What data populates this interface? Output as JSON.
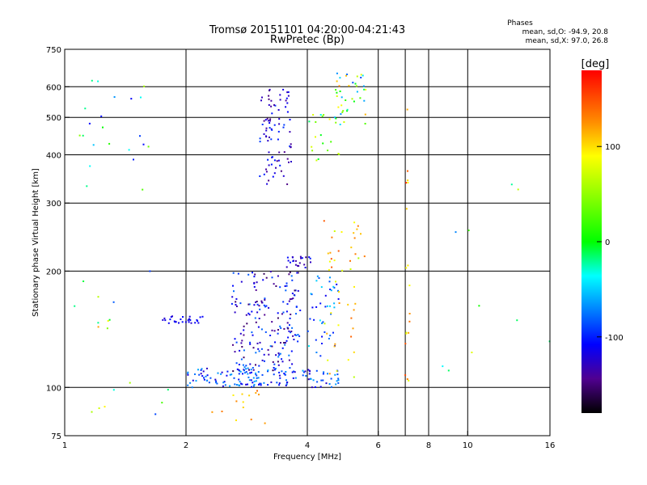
{
  "chart_data": {
    "type": "scatter",
    "title": "Tromsø 20151101 04:20:00-04:21:43",
    "subtitle": "RwPretec (Bp)",
    "stats": {
      "heading": "Phases",
      "line1": "mean, sd,O:  -94.9, 20.8",
      "line2": "mean, sd,X:  97.0, 26.8"
    },
    "xlabel": "Frequency [MHz]",
    "ylabel": "Stationary phase Virtual Height [km]",
    "xscale": "log",
    "yscale": "log",
    "xlim": [
      1,
      16
    ],
    "ylim": [
      75,
      750
    ],
    "x_ticks": [
      1,
      2,
      4,
      6,
      8,
      10,
      16
    ],
    "x_tick_labels": [
      "1",
      "2",
      "4",
      "6",
      "8",
      "10",
      "16"
    ],
    "y_ticks": [
      75,
      100,
      200,
      300,
      400,
      500,
      600,
      750
    ],
    "y_tick_labels": [
      "75",
      "100",
      "200",
      "300",
      "400",
      "500",
      "600",
      "750"
    ],
    "x_grid": [
      2,
      4,
      6,
      7,
      8,
      10
    ],
    "y_grid": [
      100,
      200,
      300,
      400,
      500,
      600
    ],
    "colorbar": {
      "label": "[deg]",
      "range": [
        -180,
        180
      ],
      "ticks": [
        100,
        0,
        -100
      ],
      "tick_labels": [
        "100",
        "0",
        "-100"
      ]
    },
    "clusters": [
      {
        "fmin": 2.0,
        "fmax": 4.8,
        "hmin": 100,
        "hmax": 112,
        "n": 150,
        "pmin": -130,
        "pmax": -60
      },
      {
        "fmin": 2.6,
        "fmax": 3.8,
        "hmin": 110,
        "hmax": 200,
        "n": 190,
        "pmin": -160,
        "pmax": -70
      },
      {
        "fmin": 1.75,
        "fmax": 2.2,
        "hmin": 146,
        "hmax": 153,
        "n": 28,
        "pmin": -125,
        "pmax": -105
      },
      {
        "fmin": 3.55,
        "fmax": 4.1,
        "hmin": 200,
        "hmax": 218,
        "n": 22,
        "pmin": -140,
        "pmax": -90
      },
      {
        "fmin": 3.75,
        "fmax": 4.8,
        "hmin": 120,
        "hmax": 200,
        "n": 45,
        "pmin": -115,
        "pmax": -40
      },
      {
        "fmin": 3.05,
        "fmax": 3.65,
        "hmin": 335,
        "hmax": 590,
        "n": 85,
        "pmin": -150,
        "pmax": -90
      },
      {
        "fmin": 4.7,
        "fmax": 5.6,
        "hmin": 470,
        "hmax": 650,
        "n": 40,
        "pmin": -90,
        "pmax": 130
      },
      {
        "fmin": 4.0,
        "fmax": 4.8,
        "hmin": 380,
        "hmax": 520,
        "n": 20,
        "pmin": -60,
        "pmax": 90
      },
      {
        "fmin": 4.4,
        "fmax": 5.6,
        "hmin": 200,
        "hmax": 270,
        "n": 25,
        "pmin": 60,
        "pmax": 150
      },
      {
        "fmin": 4.4,
        "fmax": 5.3,
        "hmin": 100,
        "hmax": 200,
        "n": 22,
        "pmin": 60,
        "pmax": 150
      },
      {
        "fmin": 2.3,
        "fmax": 3.2,
        "hmin": 80,
        "hmax": 100,
        "n": 14,
        "pmin": 90,
        "pmax": 150
      },
      {
        "fmin": 1.0,
        "fmax": 1.7,
        "hmin": 320,
        "hmax": 640,
        "n": 22,
        "pmin": -120,
        "pmax": 60
      },
      {
        "fmin": 1.0,
        "fmax": 1.9,
        "hmin": 80,
        "hmax": 200,
        "n": 18,
        "pmin": -130,
        "pmax": 120
      },
      {
        "fmin": 7.0,
        "fmax": 7.2,
        "hmin": 85,
        "hmax": 530,
        "n": 18,
        "pmin": 70,
        "pmax": 170
      },
      {
        "fmin": 8.3,
        "fmax": 16.0,
        "hmin": 105,
        "hmax": 400,
        "n": 10,
        "pmin": -120,
        "pmax": 110
      }
    ]
  }
}
